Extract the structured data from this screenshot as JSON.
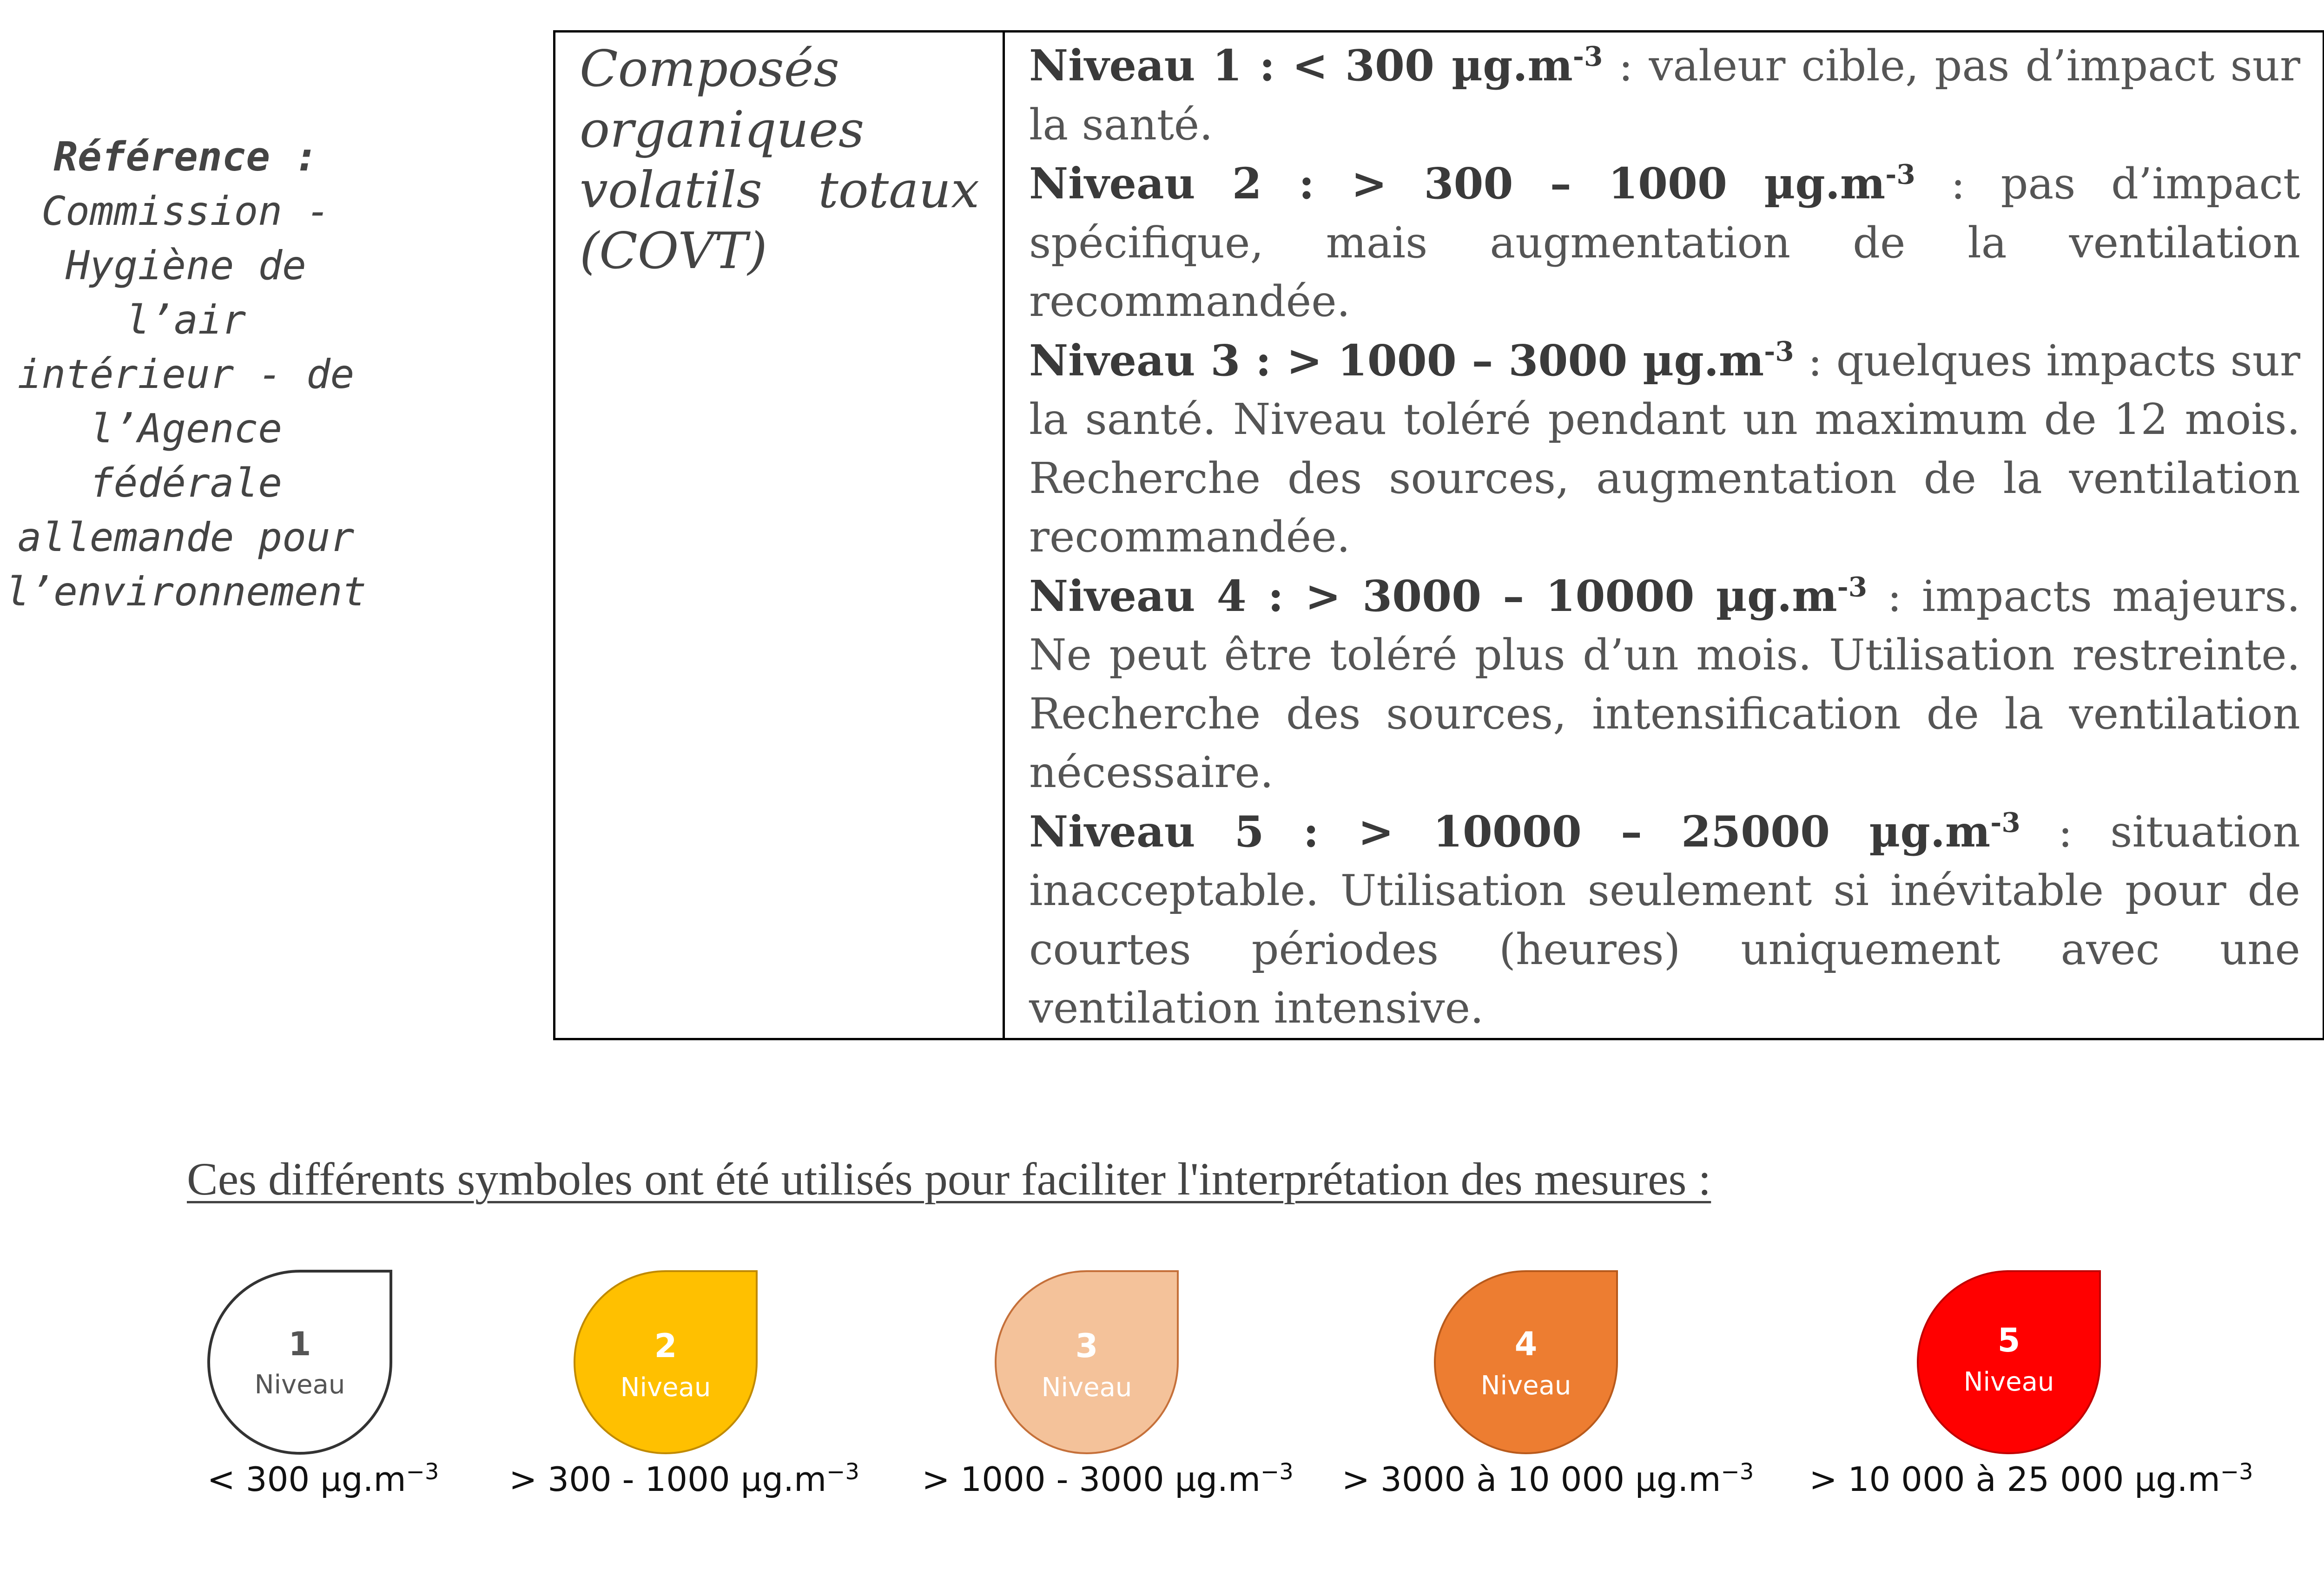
{
  "reference": {
    "title": "Référence :",
    "lines": [
      "Commission -",
      "Hygiène de l’air",
      "intérieur - de",
      "l’Agence fédérale",
      "allemande pour",
      "l’environnement"
    ]
  },
  "pollutant": {
    "lines": [
      [
        "Composés"
      ],
      [
        "organiques"
      ],
      [
        "volatils",
        "totaux"
      ],
      [
        "(COVT)"
      ]
    ]
  },
  "levels": [
    {
      "label": "Niveau 1 : < 300 µg.m",
      "exp": "-3",
      "text": " : valeur cible, pas d’impact sur la santé."
    },
    {
      "label": "Niveau 2 : > 300 – 1000 µg.m",
      "exp": "-3",
      "text": " : pas d’impact spécifique, mais augmentation de la ventilation recommandée."
    },
    {
      "label": "Niveau 3 : > 1000 – 3000 µg.m",
      "exp": "-3",
      "text": " : quelques impacts sur la santé. Niveau toléré pendant un maximum de 12 mois. Recherche des sources, augmentation de la ventilation recommandée."
    },
    {
      "label": "Niveau 4 : > 3000 – 10000 µg.m",
      "exp": "-3",
      "text": " : impacts majeurs. Ne peut être toléré plus d’un mois. Utilisation restreinte. Recherche des sources, intensification de la ventilation nécessaire."
    },
    {
      "label": "Niveau 5 : > 10000 – 25000 µg.m",
      "exp": "-3",
      "text": " : situation inacceptable. Utilisation seulement si inévitable pour de courtes périodes (heures) uniquement avec une ventilation intensive."
    }
  ],
  "legend": {
    "caption": "Ces différents symboles ont été utilisés pour faciliter l'interprétation des mesures :",
    "symbols": [
      {
        "num": "1",
        "word": "Niveau",
        "range": "< 300 µg.m",
        "exp": "−3",
        "fill": "#ffffff",
        "stroke": "#333333",
        "text_color": "#555555"
      },
      {
        "num": "2",
        "word": "Niveau",
        "range": "> 300 - 1000 µg.m",
        "exp": "−3",
        "fill": "#ffc000",
        "stroke": "#c08a00",
        "text_color": "#ffffff"
      },
      {
        "num": "3",
        "word": "Niveau",
        "range": "> 1000 - 3000 µg.m",
        "exp": "−3",
        "fill": "#f4c29a",
        "stroke": "#c5703a",
        "text_color": "#ffffff"
      },
      {
        "num": "4",
        "word": "Niveau",
        "range": "> 3000 à 10 000 µg.m",
        "exp": "−3",
        "fill": "#ed7d31",
        "stroke": "#b85a1c",
        "text_color": "#ffffff"
      },
      {
        "num": "5",
        "word": "Niveau",
        "range": "> 10 000 à 25 000 µg.m",
        "exp": "−3",
        "fill": "#ff0000",
        "stroke": "#c00000",
        "text_color": "#ffffff"
      }
    ]
  }
}
